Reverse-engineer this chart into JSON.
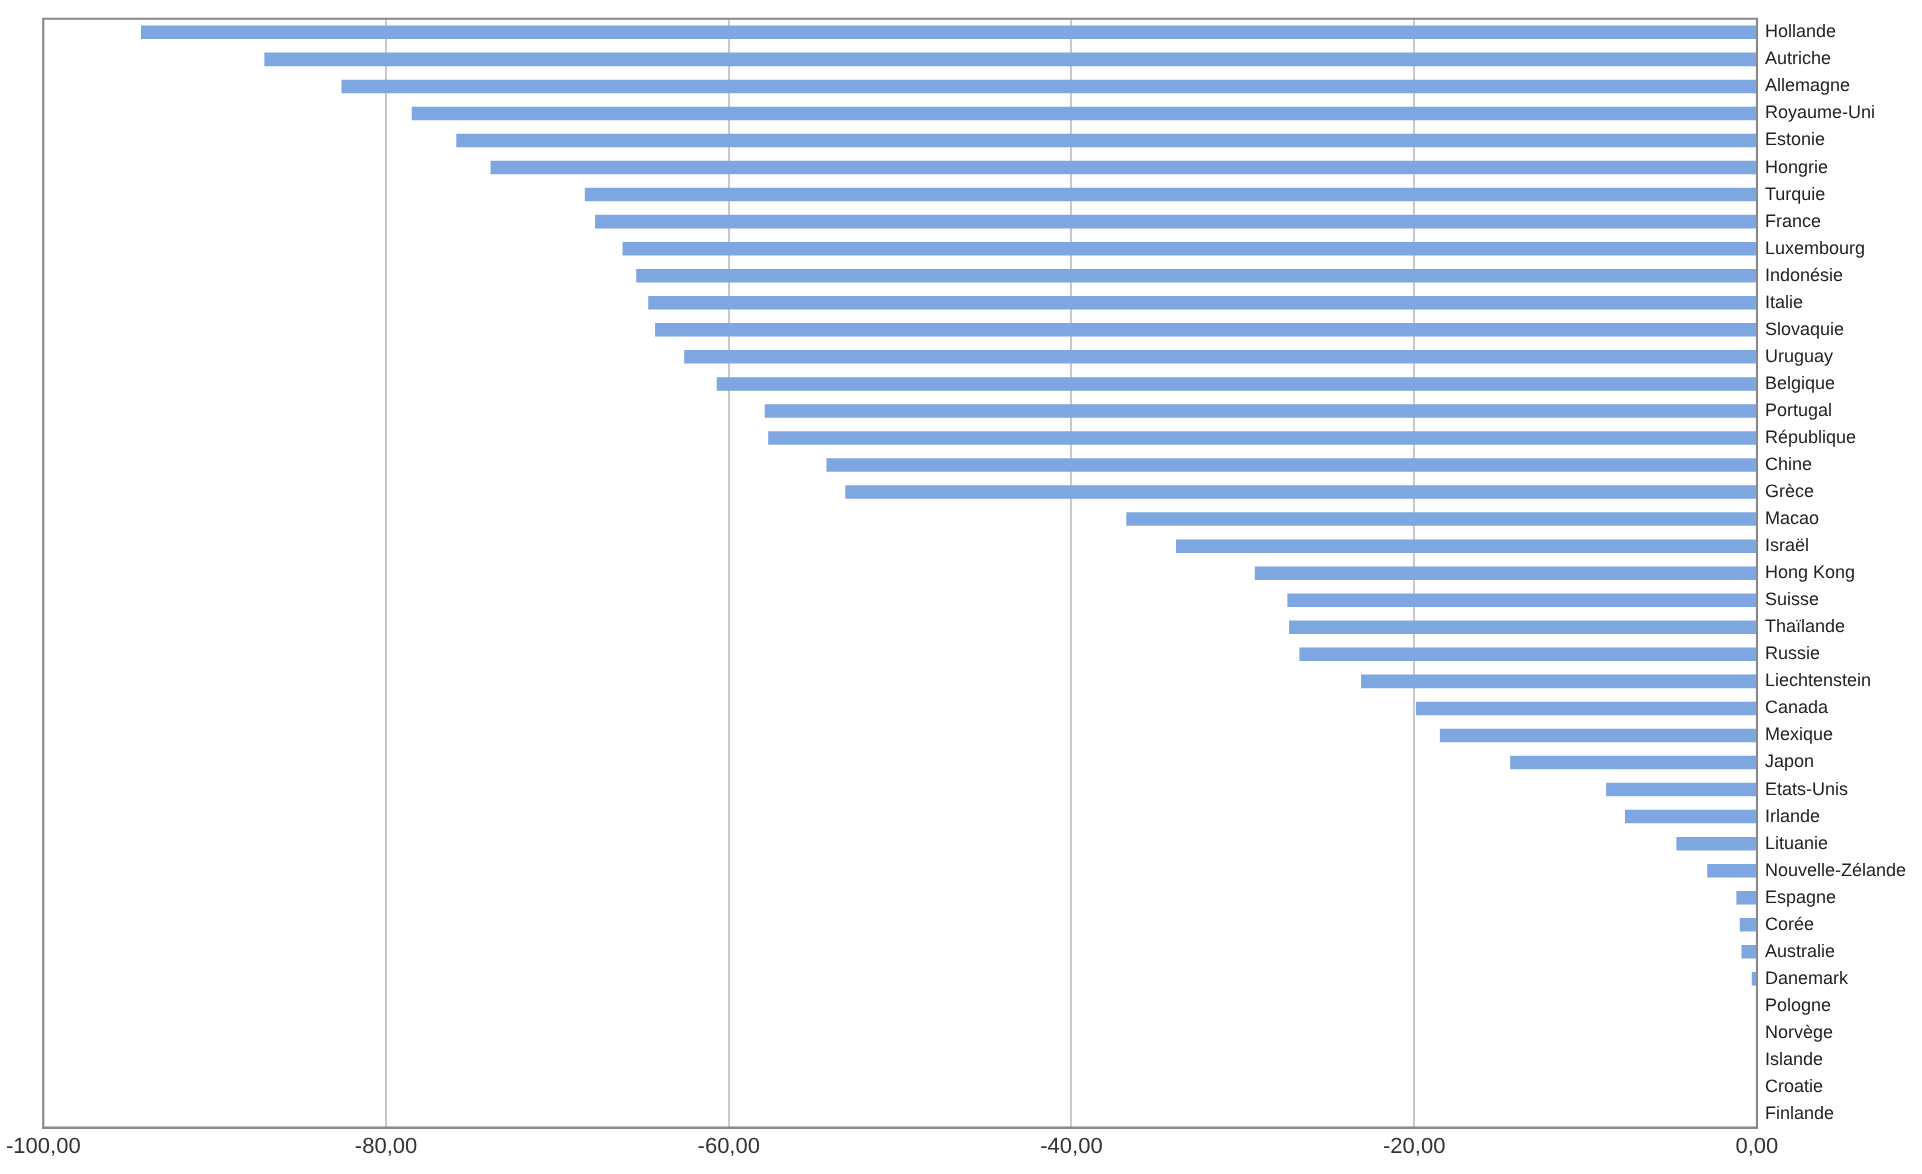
{
  "chart_data": {
    "type": "bar",
    "orientation": "horizontal",
    "categories": [
      "Hollande",
      "Autriche",
      "Allemagne",
      "Royaume-Uni",
      "Estonie",
      "Hongrie",
      "Turquie",
      "France",
      "Luxembourg",
      "Indonésie",
      "Italie",
      "Slovaquie",
      "Uruguay",
      "Belgique",
      "Portugal",
      "République",
      "Chine",
      "Grèce",
      "Macao",
      "Israël",
      "Hong Kong",
      "Suisse",
      "Thaïlande",
      "Russie",
      "Liechtenstein",
      "Canada",
      "Mexique",
      "Japon",
      "Etats-Unis",
      "Irlande",
      "Lituanie",
      "Nouvelle-Zélande",
      "Espagne",
      "Corée",
      "Australie",
      "Danemark",
      "Pologne",
      "Norvège",
      "Islande",
      "Croatie",
      "Finlande"
    ],
    "values": [
      -94.3,
      -87.1,
      -82.6,
      -78.5,
      -75.9,
      -73.9,
      -68.4,
      -67.8,
      -66.2,
      -65.4,
      -64.7,
      -64.3,
      -62.6,
      -60.7,
      -57.9,
      -57.7,
      -54.3,
      -53.2,
      -36.8,
      -33.9,
      -29.3,
      -27.4,
      -27.3,
      -26.7,
      -23.1,
      -19.9,
      -18.5,
      -14.4,
      -8.8,
      -7.7,
      -4.7,
      -2.9,
      -1.2,
      -1.0,
      -0.9,
      -0.3,
      0,
      0,
      0,
      0,
      0
    ],
    "color": "#7ea6e0",
    "xlim": [
      -100,
      0
    ],
    "xticks": [
      {
        "value": -100,
        "label": "-100,00"
      },
      {
        "value": -80,
        "label": "-80,00"
      },
      {
        "value": -60,
        "label": "-60,00"
      },
      {
        "value": -40,
        "label": "-40,00"
      },
      {
        "value": -20,
        "label": "-20,00"
      },
      {
        "value": 0,
        "label": "0,00"
      }
    ],
    "grid": "x",
    "legend": false
  }
}
